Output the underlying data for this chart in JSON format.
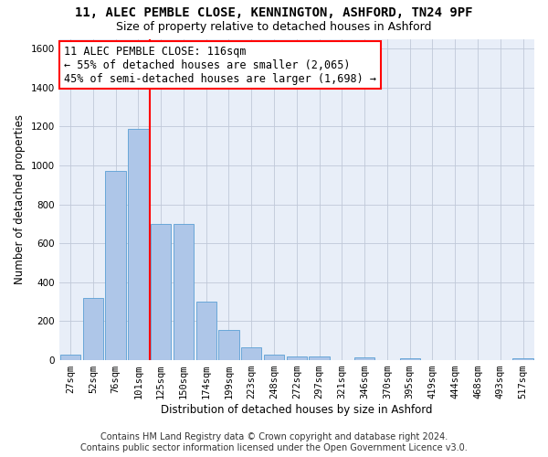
{
  "title_line1": "11, ALEC PEMBLE CLOSE, KENNINGTON, ASHFORD, TN24 9PF",
  "title_line2": "Size of property relative to detached houses in Ashford",
  "xlabel": "Distribution of detached houses by size in Ashford",
  "ylabel": "Number of detached properties",
  "bin_labels": [
    "27sqm",
    "52sqm",
    "76sqm",
    "101sqm",
    "125sqm",
    "150sqm",
    "174sqm",
    "199sqm",
    "223sqm",
    "248sqm",
    "272sqm",
    "297sqm",
    "321sqm",
    "346sqm",
    "370sqm",
    "395sqm",
    "419sqm",
    "444sqm",
    "468sqm",
    "493sqm",
    "517sqm"
  ],
  "bar_heights": [
    30,
    320,
    970,
    1190,
    700,
    700,
    300,
    155,
    65,
    30,
    20,
    20,
    0,
    15,
    0,
    10,
    0,
    0,
    0,
    0,
    10
  ],
  "bar_color": "#aec6e8",
  "bar_edge_color": "#5a9fd4",
  "property_bin_index": 4,
  "annotation_text": "11 ALEC PEMBLE CLOSE: 116sqm\n← 55% of detached houses are smaller (2,065)\n45% of semi-detached houses are larger (1,698) →",
  "annotation_box_color": "white",
  "annotation_border_color": "red",
  "vline_color": "red",
  "ylim": [
    0,
    1650
  ],
  "yticks": [
    0,
    200,
    400,
    600,
    800,
    1000,
    1200,
    1400,
    1600
  ],
  "grid_color": "#c0c8d8",
  "bg_color": "#e8eef8",
  "footer_line1": "Contains HM Land Registry data © Crown copyright and database right 2024.",
  "footer_line2": "Contains public sector information licensed under the Open Government Licence v3.0.",
  "title_fontsize": 10,
  "subtitle_fontsize": 9,
  "axis_label_fontsize": 8.5,
  "tick_fontsize": 7.5,
  "annotation_fontsize": 8.5,
  "footer_fontsize": 7
}
